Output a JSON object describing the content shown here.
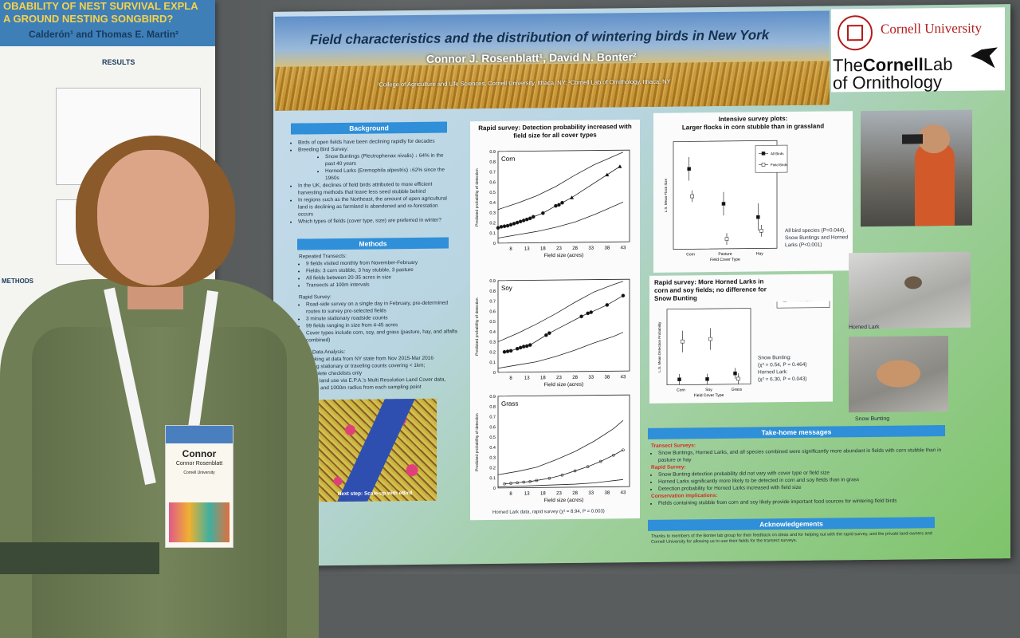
{
  "left_poster": {
    "title": "OBABILITY OF NEST SURVIVAL EXPLA",
    "subtitle": "A GROUND NESTING SONGBIRD?",
    "authors": "Calderón¹ and Thomas E. Martin²",
    "results_heading": "RESULTS",
    "methods_heading": "METHODS"
  },
  "poster": {
    "title": "Field characteristics and the distribution of wintering birds in New York",
    "authors": "Connor J. Rosenblatt¹, David N. Bonter²",
    "affiliations": "¹College of Agriculture and Life Sciences, Cornell University, Ithaca, NY;  ²Cornell Lab of Ornithology, Ithaca, NY",
    "logo": {
      "university": "Cornell University",
      "lab_line1_a": "The",
      "lab_line1_b": "Cornell",
      "lab_line1_c": "Lab",
      "lab_line2": "of Ornithology"
    },
    "background": {
      "heading": "Background",
      "bullets": [
        "Birds of open fields have been declining rapidly for decades",
        "Breeding Bird Survey:",
        "Snow Buntings (Plectrophenax nivalis) ↓ 64% in the past 40 years",
        "Horned Larks (Eremophila alpestris) ↓62% since the 1960s",
        "In the UK, declines of field birds attributed to more efficient harvesting methods that leave less seed stubble behind",
        "In regions such as the Northeast, the amount of open agricultural land is declining as farmland is abandoned and re-forestation occurs",
        "Which types of fields (cover type, size) are preferred in winter?"
      ]
    },
    "methods": {
      "heading": "Methods",
      "lines": [
        "Repeated Transects:",
        "9 fields visited monthly from November-February",
        "Fields: 3 corn stubble, 3 hay stubble, 3 pasture",
        "All fields between 20-35 acres in size",
        "Transects at 100m intervals",
        "Rapid Survey:",
        "Road-side survey on a single day in February, pre-determined routes to survey pre-selected fields",
        "3 minute stationary roadside counts",
        "99 fields ranging in size from 4-45 acres",
        "Cover types include corn, soy, and grass (pasture, hay, and alfalfa combined)",
        "eBird Data Analysis:",
        "Looking at data from NY state from Nov 2015-Mar 2016",
        "Using stationary or traveling counts covering < 1km;",
        "complete checklists only",
        "Used land use via E.P.A.'s Multi Resolution Land Cover data,",
        "500m and 1000m radius from each sampling point"
      ]
    },
    "map_caption": "Next step: Scale-up with eBird",
    "rapid_chart": {
      "title": "Rapid survey: Detection probability increased with field size for all cover types",
      "footer": "Horned Lark data, rapid survey (χ² = 8.94, P = 0.003)"
    },
    "intensive": {
      "title_line1": "Intensive survey plots:",
      "title_line2": "Larger flocks in corn stubble than in grassland",
      "note": "All bird species (P=0.044), Snow Buntings and Horned Larks (P<0.001)"
    },
    "rapid_species": {
      "title": "Rapid survey: More Horned Larks in corn and soy fields; no difference for Snow Bunting",
      "stats_sb": "Snow Bunting:",
      "stats_sb2": "(χ² = 0.54, P = 0.464)",
      "stats_hl": "Horned Lark:",
      "stats_hl2": "(χ² = 6.30, P = 0.043)"
    },
    "photos": {
      "horned_lark": "Horned Lark",
      "snow_bunting": "Snow Bunting"
    },
    "takehome": {
      "heading": "Take-home messages",
      "transect_label": "Transect Surveys:",
      "transect_text": "Snow Buntings, Horned Larks, and all species combined were significantly more abundant in fields with corn stubble than in pasture or hay",
      "rapid_label": "Rapid Survey:",
      "rapid_1": "Snow Bunting detection probability did not vary with cover type or field size",
      "rapid_2": "Horned Larks significantly more likely to be detected in corn and soy fields than in grass",
      "rapid_3": "Detection probability for Horned Larks increased with field size",
      "cons_label": "Conservation implications:",
      "cons_text": "Fields containing stubble from corn and soy likely provide important food sources for wintering field birds"
    },
    "ack": {
      "heading": "Acknowledgements",
      "text": "Thanks to members of the Bonter lab group for their feedback on ideas and for helping out with the rapid survey, and the private land-owners and Cornell University for allowing us to use their fields for the transect surveys."
    }
  },
  "badge": {
    "name": "Connor",
    "full_name": "Connor Rosenblatt",
    "org": "Cornell University"
  },
  "chart_data": [
    {
      "type": "line",
      "title": "Corn",
      "xlabel": "Field size (acres)",
      "ylabel": "Predicted probability of detection",
      "x_ticks": [
        8,
        13,
        18,
        23,
        28,
        33,
        38,
        43
      ],
      "y_ticks": [
        0,
        0.1,
        0.2,
        0.3,
        0.4,
        0.5,
        0.6,
        0.7,
        0.8,
        0.9
      ],
      "xlim": [
        4,
        45
      ],
      "ylim": [
        0,
        0.9
      ],
      "series": [
        {
          "role": "upper",
          "x": [
            4,
            10,
            16,
            22,
            28,
            34,
            40,
            43
          ],
          "y": [
            0.33,
            0.39,
            0.46,
            0.55,
            0.66,
            0.76,
            0.84,
            0.88
          ]
        },
        {
          "role": "fit",
          "x": [
            4,
            5,
            6,
            7,
            8,
            9,
            10,
            11,
            12,
            13,
            14,
            15,
            18,
            22,
            23,
            24,
            27,
            38,
            42
          ],
          "y": [
            0.15,
            0.16,
            0.165,
            0.17,
            0.18,
            0.19,
            0.2,
            0.21,
            0.22,
            0.23,
            0.24,
            0.255,
            0.29,
            0.36,
            0.37,
            0.39,
            0.44,
            0.66,
            0.74
          ]
        },
        {
          "role": "lower",
          "x": [
            4,
            10,
            16,
            22,
            28,
            34,
            40,
            43
          ],
          "y": [
            0.05,
            0.08,
            0.11,
            0.15,
            0.2,
            0.27,
            0.35,
            0.39
          ]
        }
      ]
    },
    {
      "type": "line",
      "title": "Soy",
      "xlabel": "Field size (acres)",
      "ylabel": "Predicted probability of detection",
      "x_ticks": [
        8,
        13,
        18,
        23,
        28,
        33,
        38,
        43
      ],
      "y_ticks": [
        0,
        0.1,
        0.2,
        0.3,
        0.4,
        0.5,
        0.6,
        0.7,
        0.8,
        0.9
      ],
      "xlim": [
        4,
        45
      ],
      "ylim": [
        0,
        0.9
      ],
      "series": [
        {
          "role": "upper",
          "x": [
            4,
            10,
            16,
            22,
            28,
            34,
            40,
            43
          ],
          "y": [
            0.3,
            0.38,
            0.47,
            0.57,
            0.68,
            0.78,
            0.85,
            0.88
          ]
        },
        {
          "role": "fit",
          "x": [
            6,
            7,
            8,
            10,
            11,
            12,
            13,
            14,
            19,
            20,
            30,
            32,
            33,
            38,
            43
          ],
          "y": [
            0.2,
            0.205,
            0.21,
            0.23,
            0.24,
            0.25,
            0.255,
            0.265,
            0.36,
            0.38,
            0.54,
            0.57,
            0.58,
            0.65,
            0.74
          ]
        },
        {
          "role": "lower",
          "x": [
            4,
            10,
            16,
            22,
            28,
            34,
            40,
            43
          ],
          "y": [
            0.04,
            0.07,
            0.1,
            0.15,
            0.21,
            0.28,
            0.34,
            0.38
          ]
        }
      ]
    },
    {
      "type": "line",
      "title": "Grass",
      "xlabel": "Field size (acres)",
      "ylabel": "Predicted probability of detection",
      "x_ticks": [
        8,
        13,
        18,
        23,
        28,
        33,
        38,
        43
      ],
      "y_ticks": [
        0,
        0.1,
        0.2,
        0.3,
        0.4,
        0.5,
        0.6,
        0.7,
        0.8,
        0.9
      ],
      "xlim": [
        4,
        45
      ],
      "ylim": [
        0,
        0.9
      ],
      "series": [
        {
          "role": "upper",
          "x": [
            4,
            10,
            16,
            22,
            28,
            34,
            40,
            43
          ],
          "y": [
            0.13,
            0.16,
            0.2,
            0.27,
            0.35,
            0.45,
            0.57,
            0.65
          ]
        },
        {
          "role": "fit",
          "x": [
            6,
            8,
            10,
            12,
            14,
            16,
            20,
            24,
            28,
            32,
            36,
            40,
            43
          ],
          "y": [
            0.04,
            0.045,
            0.05,
            0.055,
            0.06,
            0.07,
            0.09,
            0.12,
            0.16,
            0.2,
            0.25,
            0.31,
            0.36
          ]
        },
        {
          "role": "lower",
          "x": [
            4,
            10,
            16,
            22,
            28,
            34,
            40,
            43
          ],
          "y": [
            0.01,
            0.015,
            0.02,
            0.025,
            0.03,
            0.04,
            0.06,
            0.07
          ]
        }
      ]
    },
    {
      "type": "scatter",
      "title": "Intensive survey plots",
      "xlabel": "Field Cover Type",
      "ylabel": "L.S. Mean Flock Size",
      "categories": [
        "Corn",
        "Pasture",
        "Hay"
      ],
      "legend": [
        "All Birds",
        "Field Birds"
      ],
      "series": [
        {
          "name": "All Birds",
          "values": [
            3.6,
            1.8,
            1.1
          ],
          "err": [
            0.6,
            0.6,
            0.7
          ]
        },
        {
          "name": "Field Birds",
          "values": [
            2.2,
            0.0,
            0.4
          ],
          "err": [
            0.3,
            0.3,
            0.3
          ]
        }
      ],
      "ylim": [
        -0.5,
        5
      ]
    },
    {
      "type": "scatter",
      "title": "Rapid survey species",
      "xlabel": "Field Cover Type",
      "ylabel": "L.S. Mean Detection Probability",
      "categories": [
        "Corn",
        "Soy",
        "Grass"
      ],
      "legend": [
        "Snow Bunting",
        "Horned Lark"
      ],
      "series": [
        {
          "name": "Snow Bunting",
          "values": [
            0.05,
            0.05,
            0.1
          ],
          "err": [
            0.05,
            0.05,
            0.05
          ]
        },
        {
          "name": "Horned Lark",
          "values": [
            0.4,
            0.42,
            0.05
          ],
          "err": [
            0.1,
            0.1,
            0.05
          ]
        }
      ],
      "ylim": [
        0,
        0.7
      ]
    }
  ]
}
